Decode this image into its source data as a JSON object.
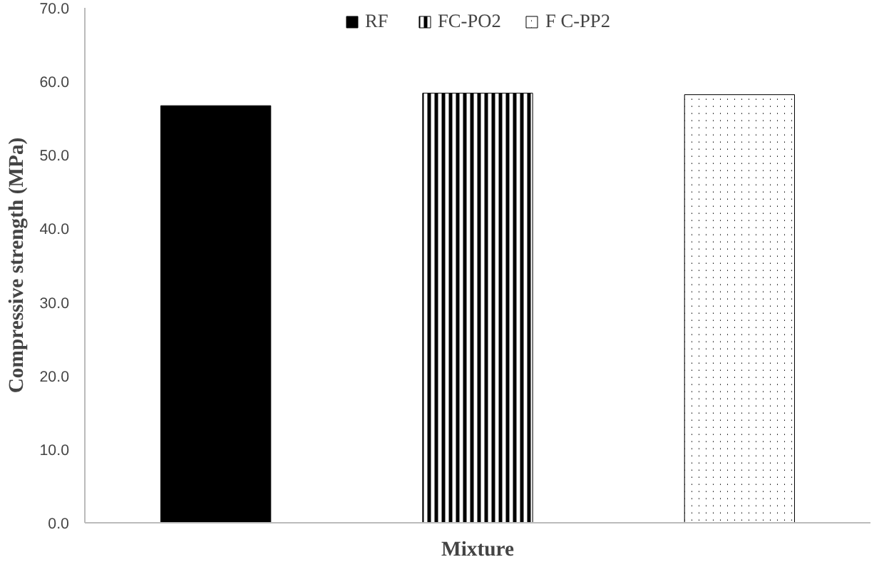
{
  "chart_data": {
    "type": "bar",
    "xlabel": "Mixture",
    "ylabel": "Compressive strength (MPa)",
    "categories": [
      null,
      null,
      null
    ],
    "series": [
      {
        "name": "RF",
        "color": "#000000",
        "values": [
          56.7,
          null,
          null
        ]
      },
      {
        "name": "FC-PO2",
        "color": "#000000",
        "values": [
          null,
          58.4,
          null
        ]
      },
      {
        "name": "F C-PP2",
        "color": "#000000",
        "values": [
          null,
          null,
          58.2
        ]
      }
    ],
    "ylim": [
      0,
      70
    ],
    "yticks": [
      {
        "value": 0,
        "label": "0.0"
      },
      {
        "value": 10,
        "label": "10.0"
      },
      {
        "value": 20,
        "label": "20.0"
      },
      {
        "value": 30,
        "label": "30.0"
      },
      {
        "value": 40,
        "label": "40.0"
      },
      {
        "value": 50,
        "label": "50.0"
      },
      {
        "value": 60,
        "label": "60.0"
      },
      {
        "value": 70,
        "label": "70.0"
      }
    ],
    "grid": false,
    "legend": "top"
  }
}
